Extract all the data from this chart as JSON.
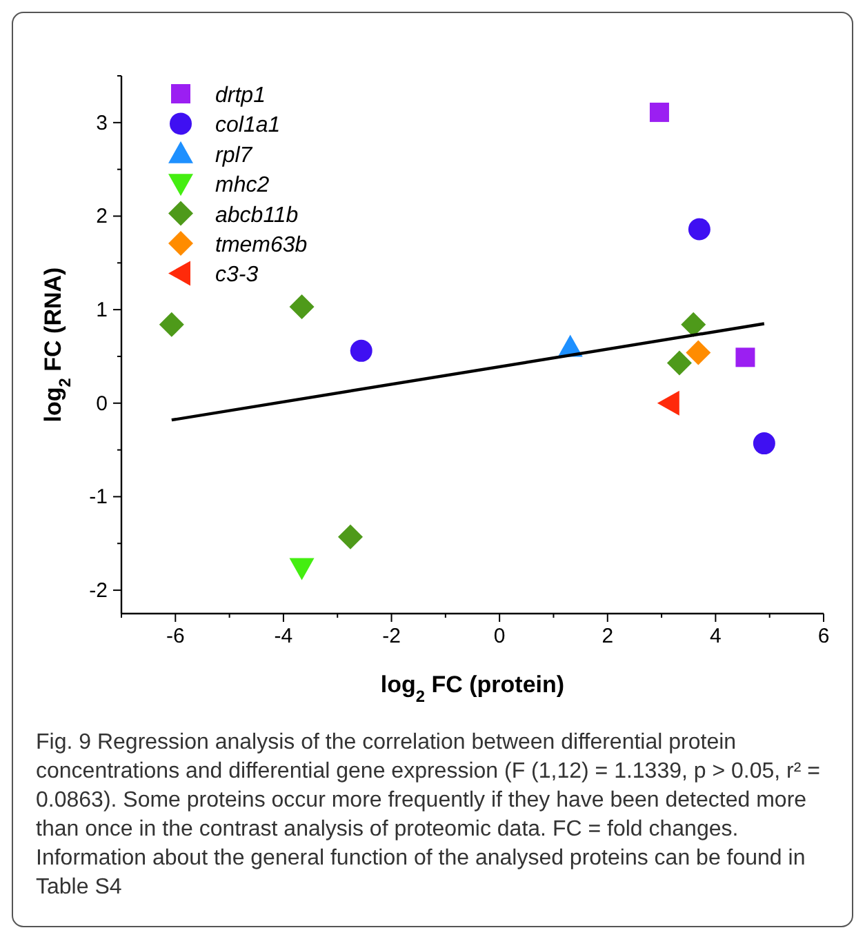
{
  "chart_data": {
    "type": "scatter",
    "xlabel": "log$_{2}$ FC (protein)",
    "ylabel": "log$_{2}$ FC (RNA)",
    "xlim": [
      -7,
      6
    ],
    "ylim": [
      -2.25,
      3.5
    ],
    "xticks": [
      {
        "value": -7,
        "label": null
      },
      -6,
      {
        "value": -5,
        "label": null
      },
      -4,
      {
        "value": -3,
        "label": null
      },
      -2,
      {
        "value": -1,
        "label": null
      },
      0,
      {
        "value": 1,
        "label": null
      },
      2,
      {
        "value": 3,
        "label": null
      },
      4,
      {
        "value": 5,
        "label": null
      },
      6
    ],
    "yticks": [
      -2,
      {
        "value": -1.5,
        "label": null
      },
      -1,
      {
        "value": -0.5,
        "label": null
      },
      0,
      {
        "value": 0.5,
        "label": null
      },
      1,
      {
        "value": 1.5,
        "label": null
      },
      2,
      {
        "value": 2.5,
        "label": null
      },
      3,
      {
        "value": 3.5,
        "label": null
      }
    ],
    "legend": "top left",
    "grid": false,
    "series": [
      {
        "name": "drtp1",
        "color": "#9b1ff2",
        "marker": "square",
        "x": [
          2.96,
          4.55
        ],
        "values": [
          3.11,
          0.49
        ]
      },
      {
        "name": "col1a1",
        "color": "#3f10f2",
        "marker": "circle",
        "x": [
          3.7,
          -2.56,
          4.9
        ],
        "values": [
          1.86,
          0.56,
          -0.43
        ]
      },
      {
        "name": "rpl7",
        "color": "#1e90ff",
        "marker": "triangle",
        "x": [
          1.31
        ],
        "values": [
          0.6
        ]
      },
      {
        "name": "mhc2",
        "color": "#44ee11",
        "marker": "triangle-down",
        "x": [
          -3.66
        ],
        "values": [
          -1.76
        ]
      },
      {
        "name": "abcb11b",
        "color": "#4e9a1a",
        "marker": "diamond",
        "x": [
          -6.07,
          -3.66,
          -2.76,
          3.59,
          3.33
        ],
        "values": [
          0.84,
          1.03,
          -1.43,
          0.84,
          0.43
        ]
      },
      {
        "name": "tmem63b",
        "color": "#ff8c00",
        "marker": "diamond",
        "x": [
          3.68
        ],
        "values": [
          0.54
        ]
      },
      {
        "name": "c3-3",
        "color": "#ff2a0a",
        "marker": "triangle-left",
        "x": [
          3.15
        ],
        "values": [
          0.0
        ]
      },
      {
        "type": "line",
        "color": "#000000",
        "x": [
          -6.07,
          4.9
        ],
        "values": [
          -0.18,
          0.85
        ]
      }
    ],
    "annotations": [
      "Fig. 9  Regression analysis of the correlation between differential protein concentrations and differential gene expression (F (1,12) = 1.1339, p > 0.05, r² = 0.0863). Some proteins occur more frequently if they have been detected more than once in the contrast analysis of proteomic data. FC = fold changes. Information about the general function of the analysed proteins can be found in Table S4"
    ]
  }
}
